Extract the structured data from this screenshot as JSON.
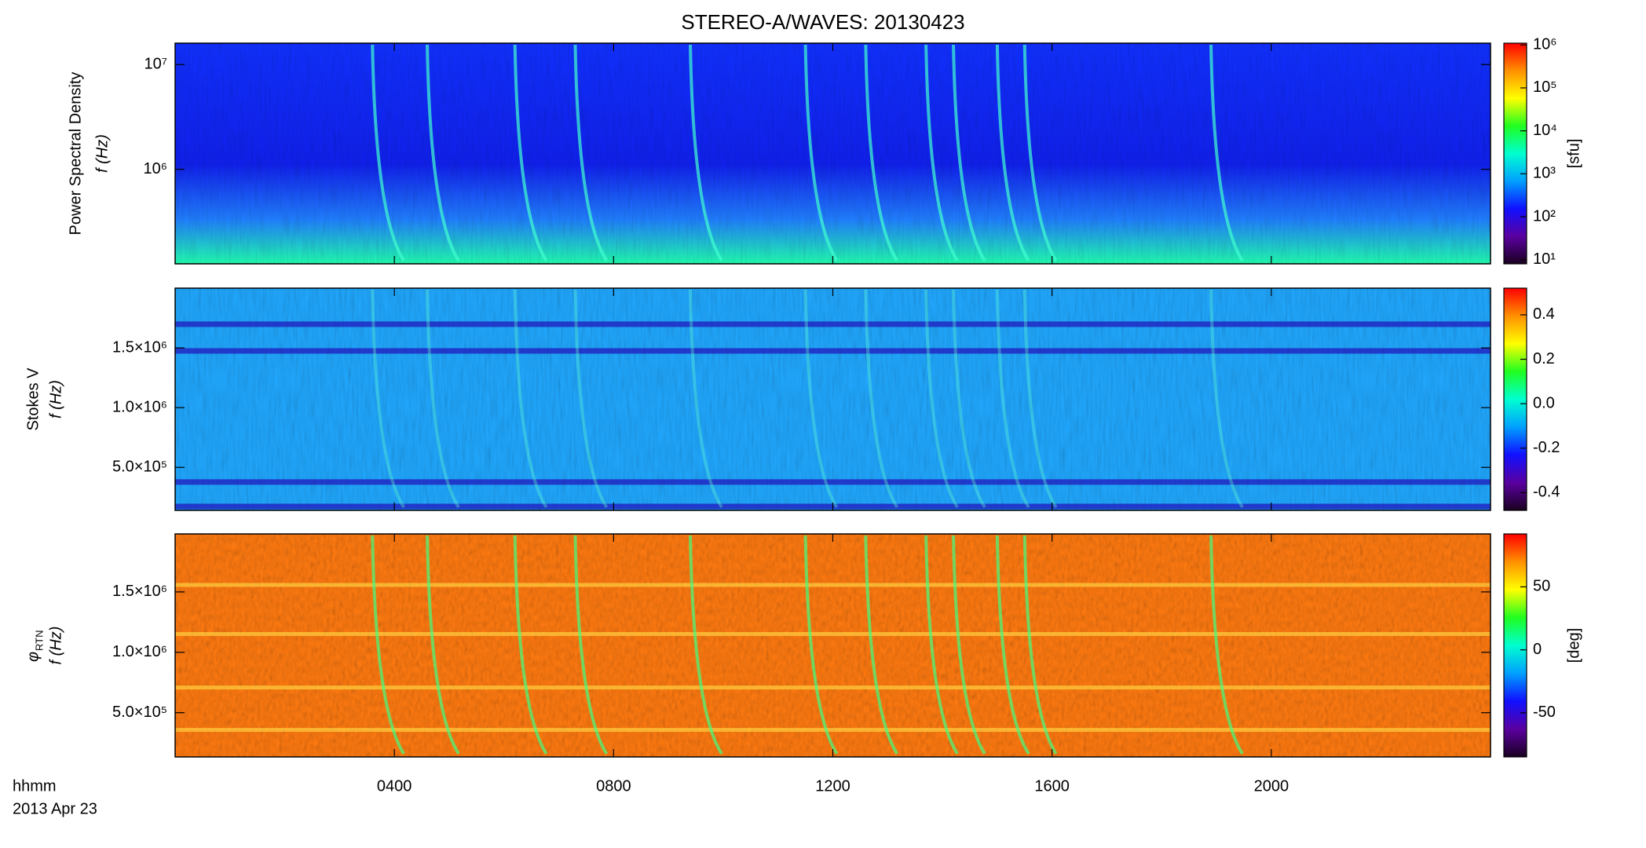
{
  "chart_data": [
    {
      "type": "heatmap",
      "title": "STEREO-A/WAVES: 20130423",
      "ylabel": [
        "Power Spectral Density",
        "f (Hz)"
      ],
      "ylog": true,
      "xlim": [
        0,
        24
      ],
      "xticks": [
        {
          "value": 4,
          "label": "0400"
        },
        {
          "value": 8,
          "label": "0800"
        },
        {
          "value": 12,
          "label": "1200"
        },
        {
          "value": 16,
          "label": "1600"
        },
        {
          "value": 20,
          "label": "2000"
        }
      ],
      "xlabel": [
        "hhmm",
        "2013 Apr 23"
      ],
      "ylim": [
        125000,
        16000000
      ],
      "yticks": [
        {
          "value": 1000000,
          "label": "10⁶"
        },
        {
          "value": 10000000,
          "label": "10⁷"
        }
      ],
      "clog": true,
      "clim": [
        8,
        1100000
      ],
      "cticks": [
        {
          "value": 10,
          "label": "10¹"
        },
        {
          "value": 100,
          "label": "10²"
        },
        {
          "value": 1000,
          "label": "10³"
        },
        {
          "value": 10000,
          "label": "10⁴"
        },
        {
          "value": 100000,
          "label": "10⁵"
        },
        {
          "value": 1000000,
          "label": "10⁶"
        }
      ],
      "clabel": "[sfu]",
      "colormap": [
        "#1a0020",
        "#5a00a0",
        "#1010ff",
        "#00a0ff",
        "#00ffd0",
        "#20ff20",
        "#ffff00",
        "#ff9000",
        "#ff0000"
      ]
    },
    {
      "type": "heatmap",
      "ylabel": [
        "Stokes V",
        "f (Hz)"
      ],
      "ylog": false,
      "xlim": [
        0,
        24
      ],
      "ylim": [
        140000,
        2000000
      ],
      "yticks": [
        {
          "value": 500000,
          "label": "5.0×10⁵"
        },
        {
          "value": 1000000,
          "label": "1.0×10⁶"
        },
        {
          "value": 1500000,
          "label": "1.5×10⁶"
        }
      ],
      "clog": false,
      "clim": [
        -0.48,
        0.52
      ],
      "cticks": [
        -0.4,
        -0.2,
        {
          "value": 0,
          "label": "0.0"
        },
        0.2,
        0.4
      ],
      "colormap": [
        "#1a0020",
        "#5a00a0",
        "#1010ff",
        "#00a0ff",
        "#00ffd0",
        "#20ff20",
        "#ffff00",
        "#ff9000",
        "#ff0000"
      ]
    },
    {
      "type": "heatmap",
      "ylabel": [
        "φ",
        "RTN",
        "f (Hz)"
      ],
      "ylog": false,
      "xlim": [
        0,
        24
      ],
      "ylim": [
        134000,
        1980000
      ],
      "yticks": [
        {
          "value": 500000,
          "label": "5.0×10⁵"
        },
        {
          "value": 1000000,
          "label": "1.0×10⁶"
        },
        {
          "value": 1500000,
          "label": "1.5×10⁶"
        }
      ],
      "clog": false,
      "clim": [
        -85,
        92
      ],
      "cticks": [
        -50,
        0,
        50
      ],
      "clabel": "[deg]",
      "colormap": [
        "#1a0020",
        "#5a00a0",
        "#1010ff",
        "#00a0ff",
        "#00ffd0",
        "#20ff20",
        "#ffff00",
        "#ff9000",
        "#ff0000"
      ]
    }
  ]
}
